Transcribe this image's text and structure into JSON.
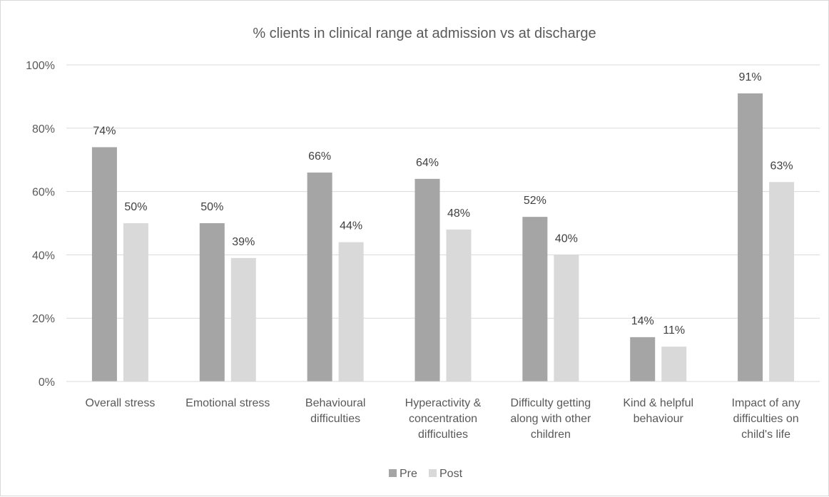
{
  "chart_data": {
    "type": "bar",
    "title": "% clients in clinical range at admission vs at discharge",
    "xlabel": "",
    "ylabel": "",
    "ylim": [
      0,
      100
    ],
    "yticks": [
      "0%",
      "20%",
      "40%",
      "60%",
      "80%",
      "100%"
    ],
    "grid": true,
    "legend_position": "bottom",
    "categories": [
      [
        "Overall stress"
      ],
      [
        "Emotional stress"
      ],
      [
        "Behavioural",
        "difficulties"
      ],
      [
        "Hyperactivity &",
        "concentration",
        "difficulties"
      ],
      [
        "Difficulty getting",
        "along with other",
        "children"
      ],
      [
        "Kind & helpful",
        "behaviour"
      ],
      [
        "Impact of any",
        "difficulties on",
        "child's life"
      ]
    ],
    "series": [
      {
        "name": "Pre",
        "color": "#a5a5a5",
        "values": [
          74,
          50,
          66,
          64,
          52,
          14,
          91
        ]
      },
      {
        "name": "Post",
        "color": "#d9d9d9",
        "values": [
          50,
          39,
          44,
          48,
          40,
          11,
          63
        ]
      }
    ],
    "value_suffix": "%"
  }
}
